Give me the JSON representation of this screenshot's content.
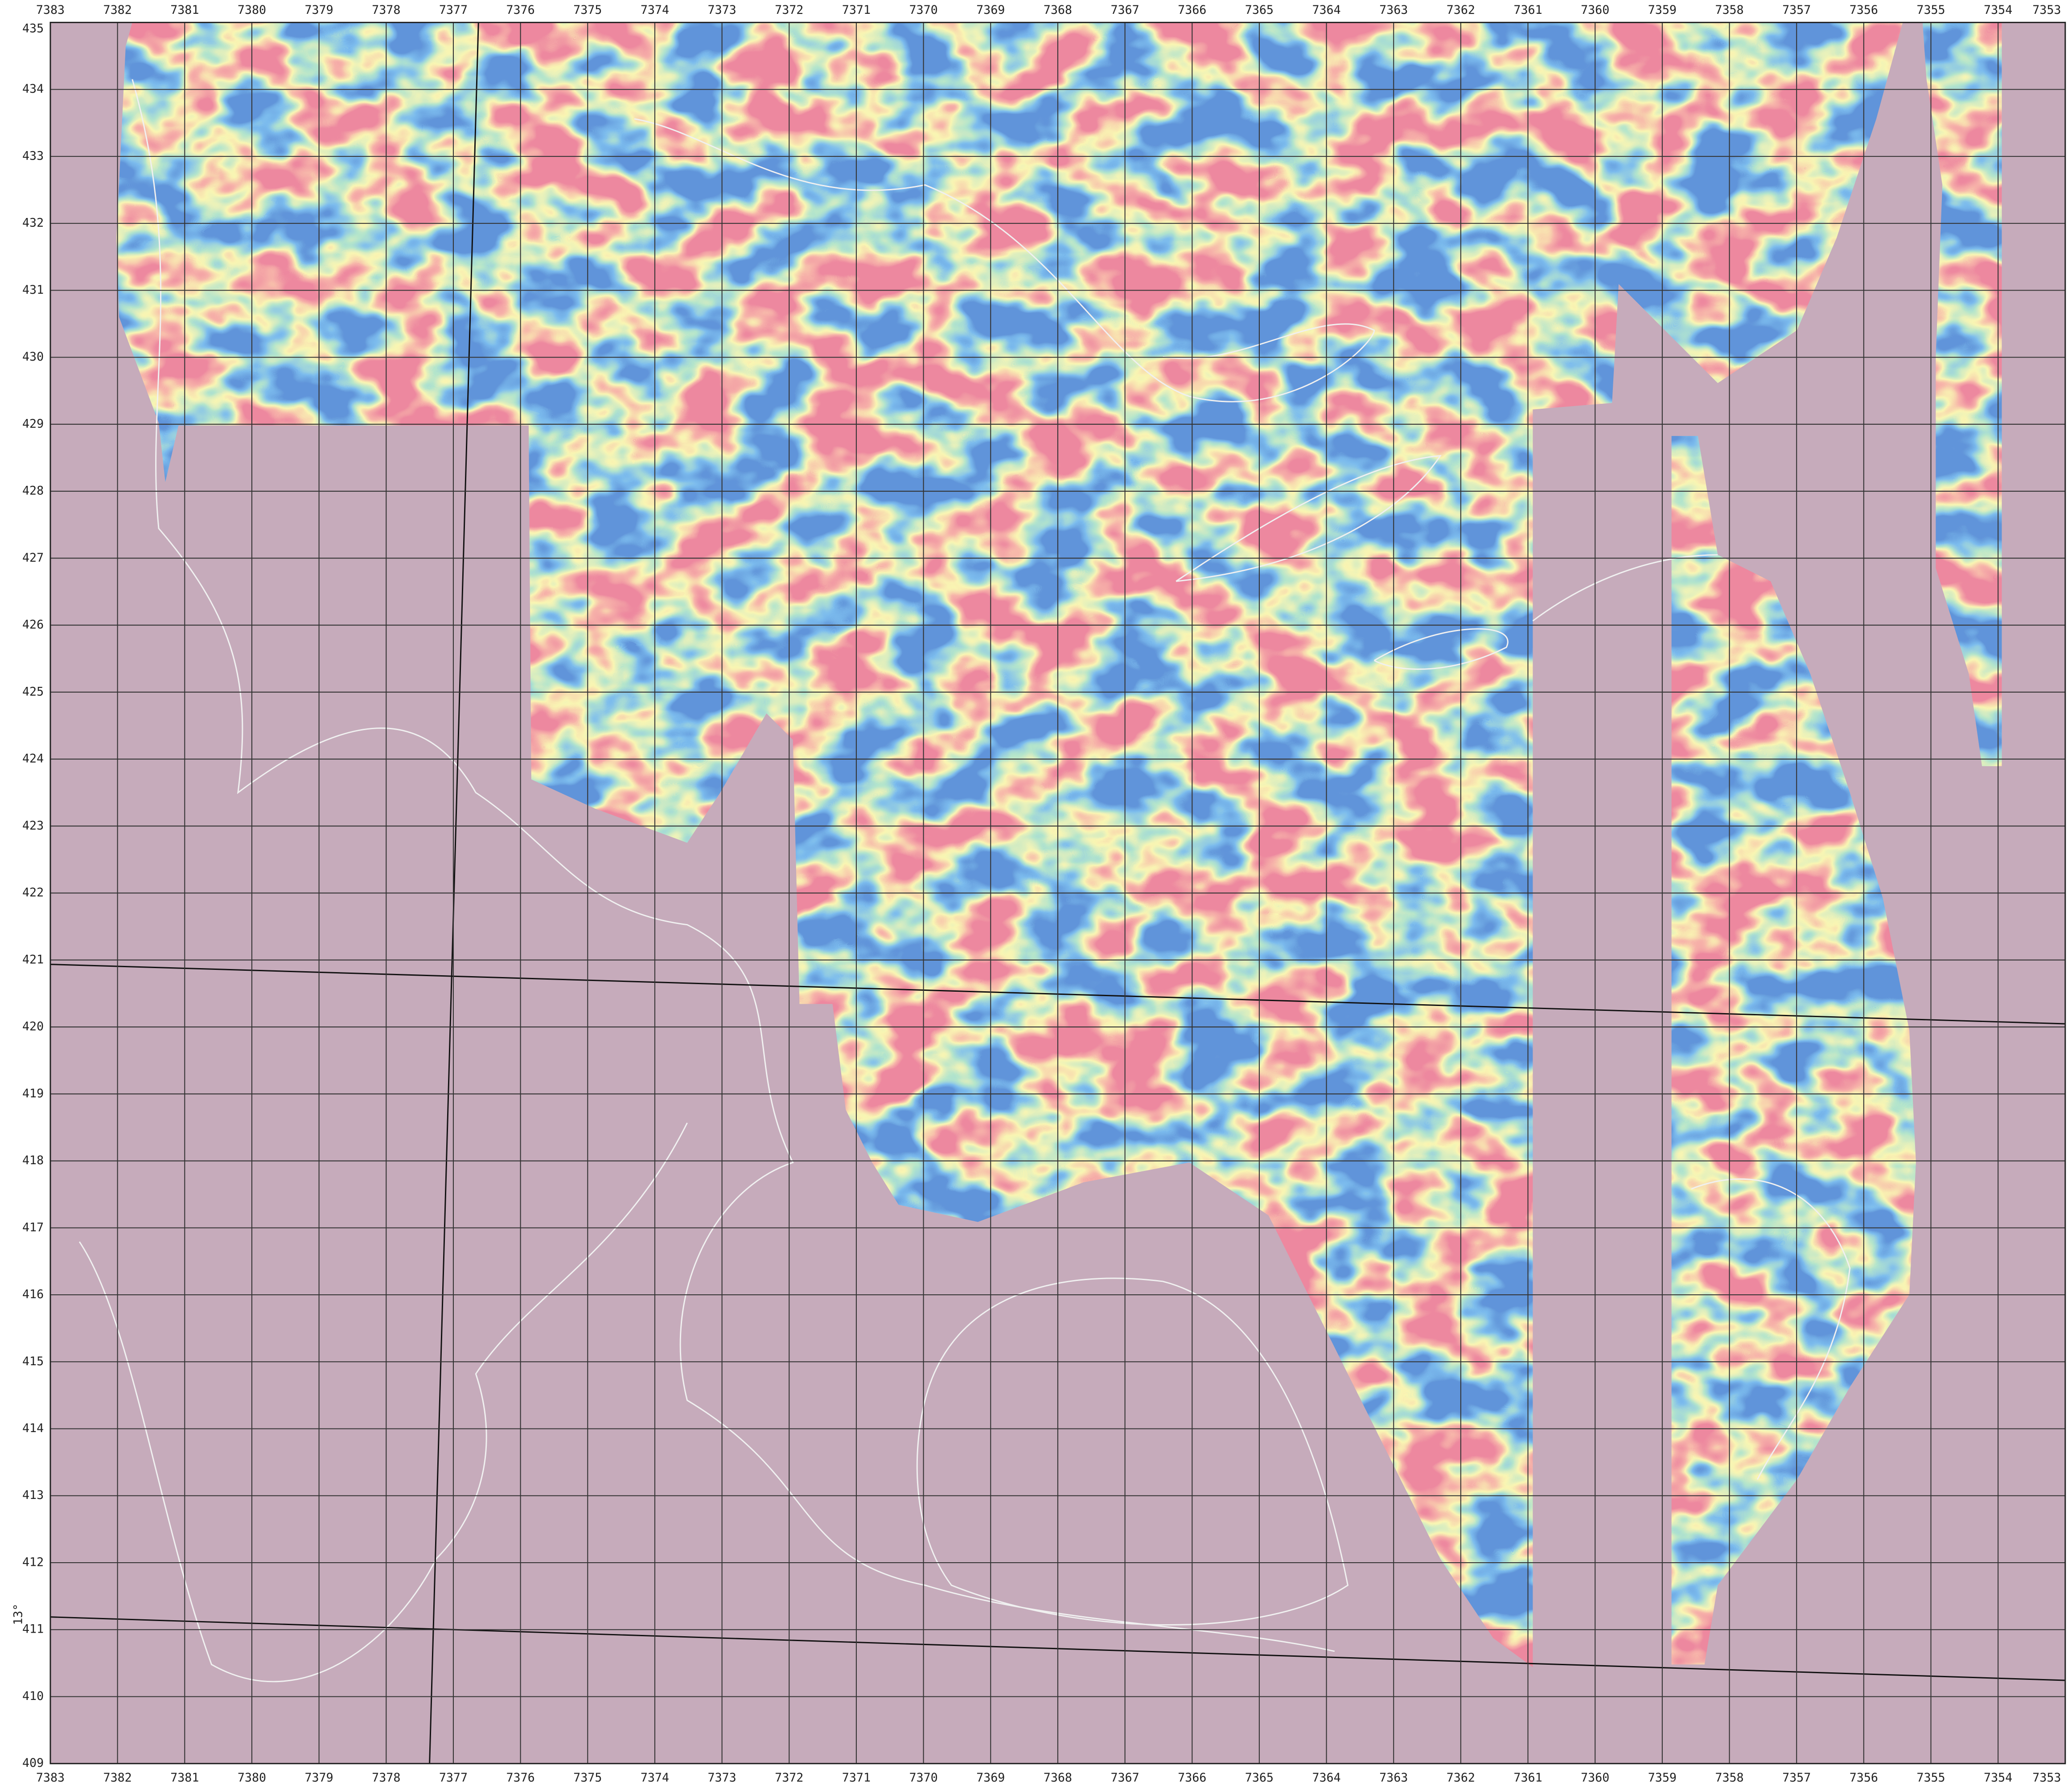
{
  "map": {
    "xlim": [
      7383,
      7353
    ],
    "ylim": [
      409,
      435
    ],
    "x_ticks": [
      7383,
      7382,
      7381,
      7380,
      7379,
      7378,
      7377,
      7376,
      7375,
      7374,
      7373,
      7372,
      7371,
      7370,
      7369,
      7368,
      7367,
      7366,
      7365,
      7364,
      7363,
      7362,
      7361,
      7360,
      7359,
      7358,
      7357,
      7356,
      7355,
      7354,
      7353
    ],
    "y_ticks": [
      435,
      434,
      433,
      432,
      431,
      430,
      429,
      428,
      427,
      426,
      425,
      424,
      423,
      422,
      421,
      420,
      419,
      418,
      417,
      416,
      415,
      414,
      413,
      412,
      411,
      410,
      409
    ],
    "side_label": "13°"
  }
}
